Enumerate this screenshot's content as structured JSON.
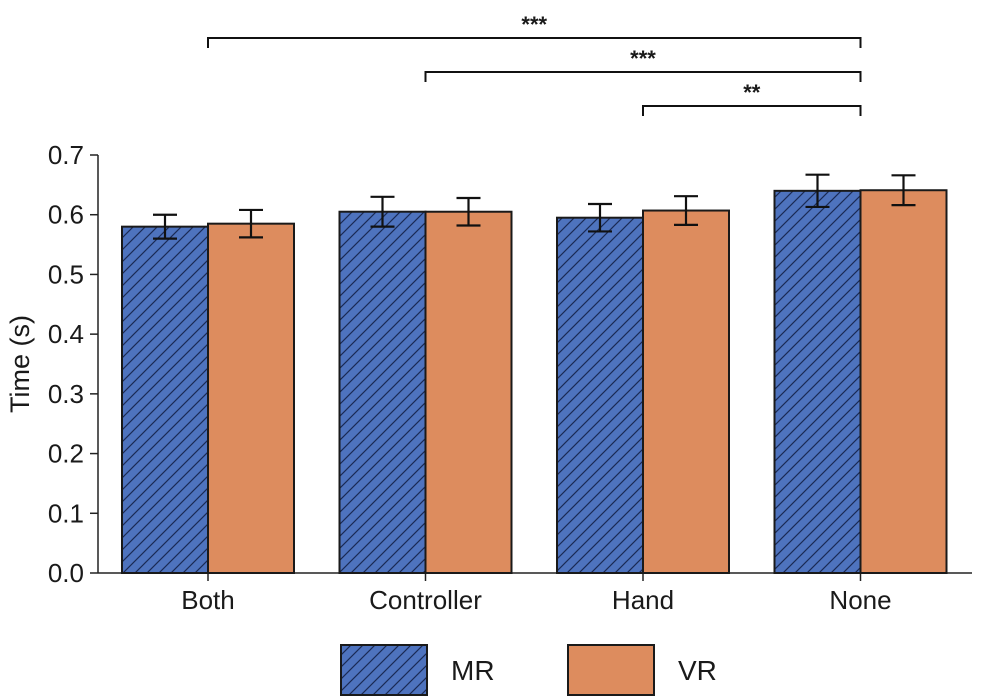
{
  "chart_data": {
    "type": "bar",
    "title": "",
    "xlabel": "",
    "ylabel": "Time (s)",
    "ylim": [
      0,
      0.7
    ],
    "yticks": [
      "0.0",
      "0.1",
      "0.2",
      "0.3",
      "0.4",
      "0.5",
      "0.6",
      "0.7"
    ],
    "categories": [
      "Both",
      "Controller",
      "Hand",
      "None"
    ],
    "series": [
      {
        "name": "MR",
        "values": [
          0.58,
          0.605,
          0.595,
          0.64
        ],
        "errors": [
          0.02,
          0.025,
          0.023,
          0.027
        ],
        "color": "#4e73be",
        "hatch": true
      },
      {
        "name": "VR",
        "values": [
          0.585,
          0.605,
          0.607,
          0.641
        ],
        "errors": [
          0.023,
          0.023,
          0.024,
          0.025
        ],
        "color": "#dd8c5e",
        "hatch": false
      }
    ],
    "legend": {
      "position": "bottom",
      "entries": [
        "MR",
        "VR"
      ]
    },
    "significance": [
      {
        "from": "Both",
        "to": "None",
        "label": "***"
      },
      {
        "from": "Controller",
        "to": "None",
        "label": "***"
      },
      {
        "from": "Hand",
        "to": "None",
        "label": "**"
      }
    ]
  }
}
